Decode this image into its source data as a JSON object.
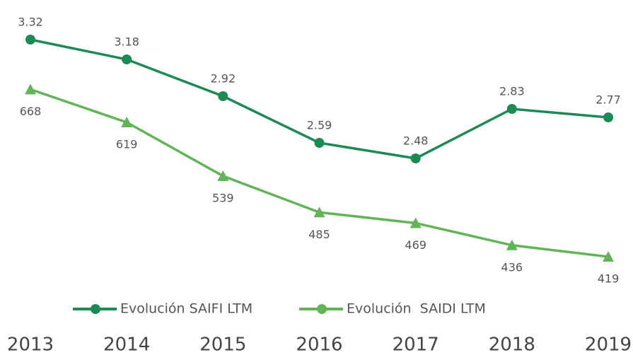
{
  "chart_data": {
    "type": "line",
    "categories": [
      "2013",
      "2014",
      "2015",
      "2016",
      "2017",
      "2018",
      "2019"
    ],
    "series": [
      {
        "name": "Evolución SAIFI LTM",
        "color": "#1d8a55",
        "marker": "circle",
        "values": [
          3.32,
          3.18,
          2.92,
          2.59,
          2.48,
          2.83,
          2.77
        ]
      },
      {
        "name": "Evolución  SAIDI LTM",
        "color": "#62b556",
        "marker": "triangle",
        "axis": "y2",
        "values": [
          668,
          619,
          539,
          485,
          469,
          436,
          419
        ]
      }
    ],
    "ylim": [
      1.6,
      3.5
    ],
    "y2lim": [
      380,
      780
    ],
    "legend": "bottom"
  }
}
